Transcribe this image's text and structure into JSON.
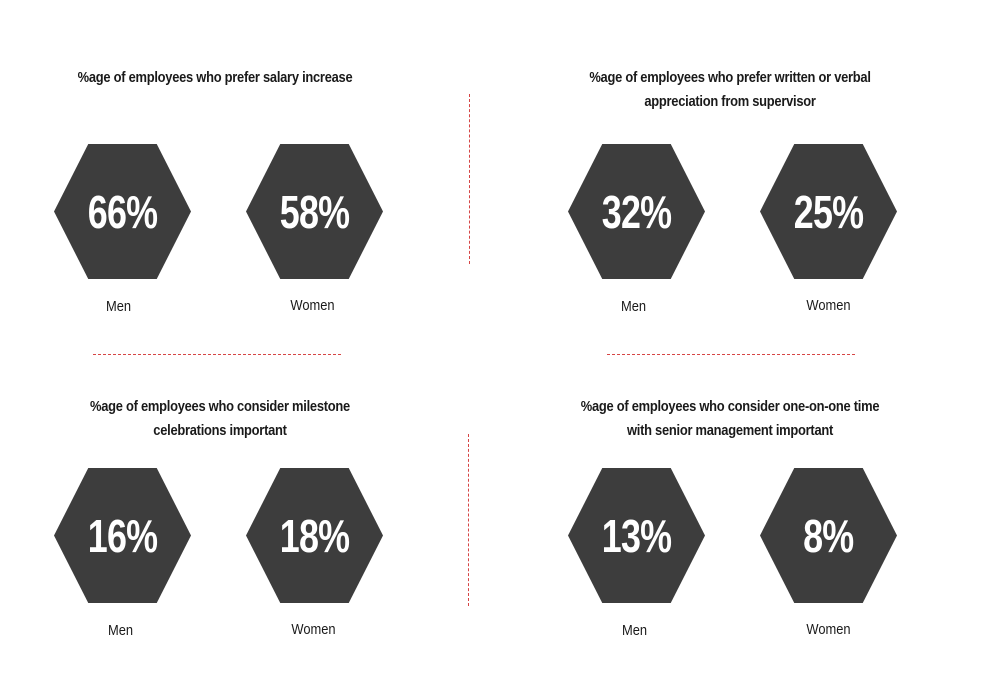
{
  "panels": [
    {
      "title_lines": [
        "%age of employees who prefer salary increase"
      ],
      "items": [
        {
          "value": "66%",
          "label": "Men"
        },
        {
          "value": "58%",
          "label": "Women"
        }
      ]
    },
    {
      "title_lines": [
        "%age of employees who prefer written or verbal",
        "appreciation from supervisor"
      ],
      "items": [
        {
          "value": "32%",
          "label": "Men"
        },
        {
          "value": "25%",
          "label": "Women"
        }
      ]
    },
    {
      "title_lines": [
        "%age of employees who consider milestone",
        "celebrations important"
      ],
      "items": [
        {
          "value": "16%",
          "label": "Men"
        },
        {
          "value": "18%",
          "label": "Women"
        }
      ]
    },
    {
      "title_lines": [
        "%age of employees who consider one-on-one time",
        "with senior management important"
      ],
      "items": [
        {
          "value": "13%",
          "label": "Men"
        },
        {
          "value": "8%",
          "label": "Women"
        }
      ]
    }
  ],
  "colors": {
    "hexagon": "#3d3d3d",
    "hexagon_text": "#ffffff",
    "divider": "#d64545"
  }
}
